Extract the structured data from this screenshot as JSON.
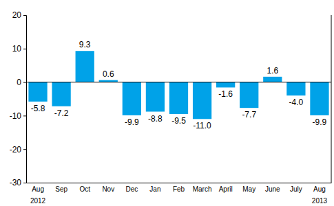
{
  "chart_data": {
    "type": "bar",
    "categories": [
      "Aug",
      "Sep",
      "Oct",
      "Nov",
      "Dec",
      "Jan",
      "Feb",
      "March",
      "April",
      "May",
      "June",
      "July",
      "Aug"
    ],
    "values": [
      -5.8,
      -7.2,
      9.3,
      0.6,
      -9.9,
      -8.8,
      -9.5,
      -11.0,
      -1.6,
      -7.7,
      1.6,
      -4.0,
      -9.9
    ],
    "value_labels": [
      "-5.8",
      "-7.2",
      "9.3",
      "0.6",
      "-9.9",
      "-8.8",
      "-9.5",
      "-11.0",
      "-1.6",
      "-7.7",
      "1.6",
      "-4.0",
      "-9.9"
    ],
    "annotations": [
      {
        "text": "2012",
        "x": 0
      },
      {
        "text": "2013",
        "x": 12
      }
    ],
    "color": "#00a2e8",
    "ylim": [
      -30,
      20
    ],
    "yticks": [
      -30,
      -20,
      -10,
      0,
      10,
      20
    ],
    "grid": false,
    "data_labels": true
  }
}
